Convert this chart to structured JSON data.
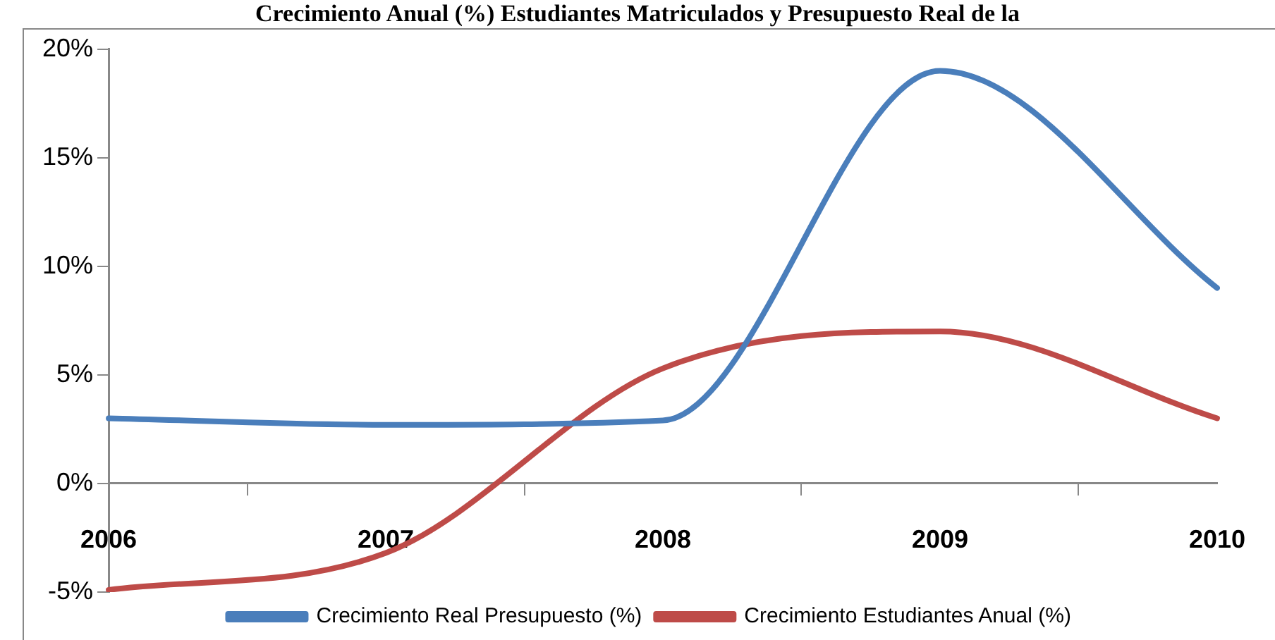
{
  "chart_data": {
    "type": "line",
    "title": "Crecimiento Anual (%) Estudiantes Matriculados y Presupuesto Real de la",
    "categories": [
      "2006",
      "2007",
      "2008",
      "2009",
      "2010"
    ],
    "series": [
      {
        "name": "Crecimiento Real Presupuesto (%)",
        "color": "#4a7ebb",
        "values": [
          3,
          2.7,
          2.9,
          19,
          9
        ]
      },
      {
        "name": "Crecimiento Estudiantes Anual (%)",
        "color": "#be4b48",
        "values": [
          -4.9,
          -3.2,
          5.3,
          7,
          3
        ]
      }
    ],
    "ylim": [
      -5,
      20
    ],
    "yticks": [
      {
        "value": -5,
        "label": "-5%"
      },
      {
        "value": 0,
        "label": "0%"
      },
      {
        "value": 5,
        "label": "5%"
      },
      {
        "value": 10,
        "label": "10%"
      },
      {
        "value": 15,
        "label": "15%"
      },
      {
        "value": 20,
        "label": "20%"
      }
    ],
    "grid": false,
    "legend": "bottom",
    "marker": "none",
    "line_style": "solid"
  }
}
